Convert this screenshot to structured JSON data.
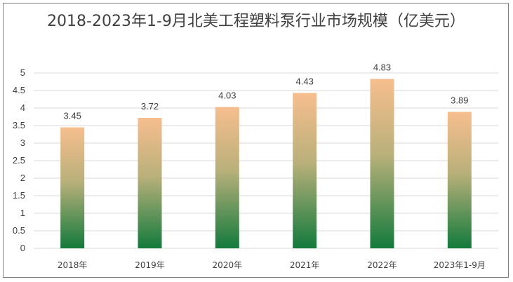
{
  "chart_data": {
    "type": "bar",
    "title": "2018-2023年1-9月北美工程塑料泵行业市场规模（亿美元）",
    "categories": [
      "2018年",
      "2019年",
      "2020年",
      "2021年",
      "2022年",
      "2023年1-9月"
    ],
    "values": [
      3.45,
      3.72,
      4.03,
      4.43,
      4.83,
      3.89
    ],
    "data_labels": [
      "3.45",
      "3.72",
      "4.03",
      "4.43",
      "4.83",
      "3.89"
    ],
    "ylim": [
      0,
      5
    ],
    "y_ticks": [
      "0",
      "0.5",
      "1",
      "1.5",
      "2",
      "2.5",
      "3",
      "3.5",
      "4",
      "4.5",
      "5"
    ],
    "grid": true,
    "legend": "none",
    "colors": {
      "bar_top": "#f7be8e",
      "bar_bottom": "#137a3c",
      "grid": "#d9d9d9",
      "text": "#404040",
      "border": "#7f7f7f"
    }
  }
}
